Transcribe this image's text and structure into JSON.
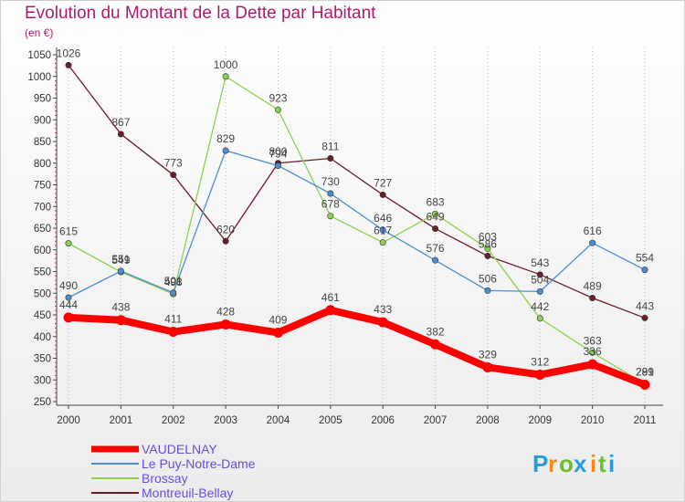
{
  "page": {
    "title": "Evolution du Montant de la Dette par Habitant",
    "subtitle": "(en €)"
  },
  "brand": {
    "letters": [
      "P",
      "r",
      "o",
      "x",
      "i",
      "t",
      "i"
    ],
    "colors": [
      "#2a9bd8",
      "#f28a1b",
      "#6cbf2e",
      "#2a9bd8",
      "#f28a1b",
      "#6cbf2e",
      "#2a9bd8"
    ]
  },
  "chart_data": {
    "type": "line",
    "x": [
      2000,
      2001,
      2002,
      2003,
      2004,
      2005,
      2006,
      2007,
      2008,
      2009,
      2010,
      2011
    ],
    "ylim": [
      250,
      1050
    ],
    "yticks": [
      250,
      300,
      350,
      400,
      450,
      500,
      550,
      600,
      650,
      700,
      750,
      800,
      850,
      900,
      950,
      1000,
      1050
    ],
    "grid": "vertical dotted",
    "legend": "bottom-left",
    "series": [
      {
        "name": "Montreuil-Bellay",
        "color": "#6b1d2a",
        "width": 1.3,
        "values": [
          1026,
          867,
          773,
          620,
          800,
          811,
          727,
          649,
          586,
          543,
          489,
          443
        ]
      },
      {
        "name": "Brossay",
        "color": "#8fd14f",
        "width": 1.3,
        "values": [
          615,
          549,
          498,
          1000,
          923,
          678,
          617,
          683,
          603,
          442,
          363,
          291
        ]
      },
      {
        "name": "Le Puy-Notre-Dame",
        "color": "#4b8fd0",
        "width": 1.3,
        "values": [
          490,
          551,
          501,
          829,
          794,
          730,
          646,
          576,
          506,
          504,
          616,
          554
        ]
      },
      {
        "name": "VAUDELNAY",
        "color": "#ff0000",
        "width": 8,
        "values": [
          444,
          438,
          411,
          428,
          409,
          461,
          433,
          382,
          329,
          312,
          336,
          289
        ]
      }
    ]
  }
}
